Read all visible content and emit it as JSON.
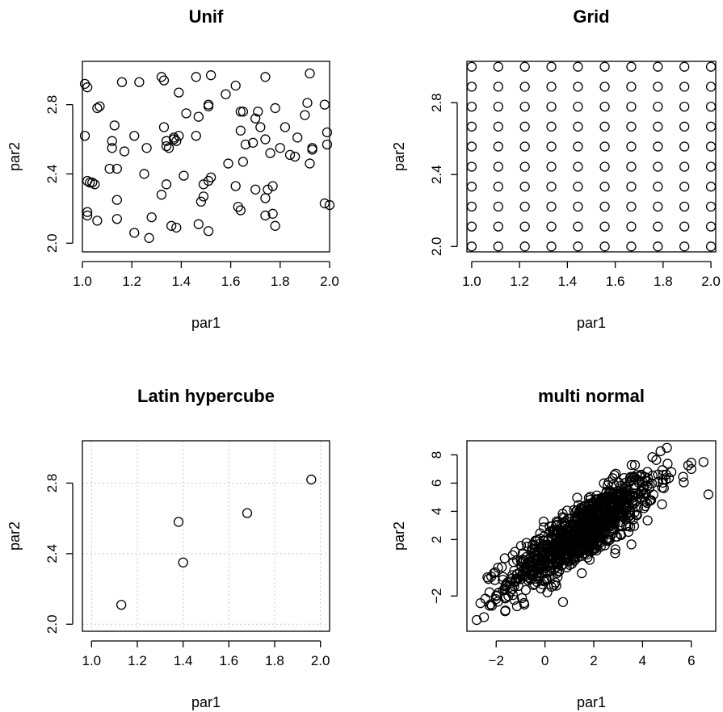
{
  "chart_data": [
    {
      "type": "scatter",
      "title": "Unif",
      "xlabel": "par1",
      "ylabel": "par2",
      "xlim": [
        1.0,
        2.0
      ],
      "ylim": [
        2.0,
        3.0
      ],
      "xticks": [
        "1.0",
        "1.2",
        "1.4",
        "1.6",
        "1.8",
        "2.0"
      ],
      "yticks": [
        "2.0",
        "2.4",
        "2.8"
      ],
      "grid": false,
      "x": [
        1.01,
        1.16,
        1.23,
        1.32,
        1.46,
        1.52,
        1.62,
        1.74,
        1.92,
        1.02,
        1.06,
        1.07,
        1.33,
        1.37,
        1.39,
        1.42,
        1.47,
        1.51,
        1.51,
        1.58,
        1.64,
        1.65,
        1.7,
        1.71,
        1.78,
        1.9,
        1.91,
        1.98,
        1.01,
        1.13,
        1.17,
        1.21,
        1.33,
        1.35,
        1.37,
        1.38,
        1.46,
        1.64,
        1.69,
        1.74,
        1.82,
        1.87,
        1.99,
        1.12,
        1.12,
        1.26,
        1.34,
        1.34,
        1.39,
        1.66,
        1.72,
        1.76,
        1.8,
        1.84,
        1.86,
        1.93,
        1.93,
        1.99,
        1.59,
        1.65,
        1.92,
        1.11,
        1.14,
        1.25,
        1.02,
        1.03,
        1.04,
        1.05,
        1.34,
        1.41,
        1.51,
        1.49,
        1.52,
        1.62,
        1.75,
        1.77,
        1.14,
        1.32,
        1.48,
        1.49,
        1.7,
        1.63,
        1.74,
        1.98,
        2.0,
        1.02,
        1.02,
        1.06,
        1.14,
        1.28,
        1.64,
        1.77,
        1.78,
        1.74,
        1.38,
        1.36,
        1.47,
        1.51,
        1.21,
        1.27
      ],
      "y": [
        2.92,
        2.93,
        2.93,
        2.96,
        2.96,
        2.97,
        2.91,
        2.96,
        2.98,
        2.9,
        2.78,
        2.79,
        2.94,
        2.61,
        2.87,
        2.75,
        2.73,
        2.8,
        2.79,
        2.86,
        2.76,
        2.76,
        2.72,
        2.76,
        2.78,
        2.74,
        2.81,
        2.8,
        2.62,
        2.68,
        2.53,
        2.62,
        2.67,
        2.55,
        2.6,
        2.59,
        2.62,
        2.65,
        2.58,
        2.6,
        2.67,
        2.61,
        2.64,
        2.59,
        2.55,
        2.55,
        2.59,
        2.56,
        2.62,
        2.57,
        2.67,
        2.52,
        2.55,
        2.51,
        2.5,
        2.55,
        2.54,
        2.57,
        2.46,
        2.47,
        2.46,
        2.43,
        2.43,
        2.4,
        2.36,
        2.35,
        2.35,
        2.34,
        2.34,
        2.39,
        2.36,
        2.34,
        2.38,
        2.33,
        2.31,
        2.33,
        2.25,
        2.28,
        2.24,
        2.27,
        2.31,
        2.21,
        2.26,
        2.23,
        2.22,
        2.18,
        2.16,
        2.13,
        2.14,
        2.15,
        2.19,
        2.17,
        2.1,
        2.16,
        2.09,
        2.1,
        2.11,
        2.07,
        2.06,
        2.03
      ]
    },
    {
      "type": "scatter",
      "title": "Grid",
      "xlabel": "par1",
      "ylabel": "par2",
      "xlim": [
        1.0,
        2.0
      ],
      "ylim": [
        2.0,
        3.0
      ],
      "xticks": [
        "1.0",
        "1.2",
        "1.4",
        "1.6",
        "1.8",
        "2.0"
      ],
      "yticks": [
        "2.0",
        "2.4",
        "2.8"
      ],
      "grid": false,
      "x_levels": [
        1.0,
        1.111,
        1.222,
        1.333,
        1.444,
        1.556,
        1.667,
        1.778,
        1.889,
        2.0
      ],
      "y_levels": [
        2.0,
        2.111,
        2.222,
        2.333,
        2.444,
        2.556,
        2.667,
        2.778,
        2.889,
        3.0
      ]
    },
    {
      "type": "scatter",
      "title": "Latin hypercube",
      "xlabel": "par1",
      "ylabel": "par2",
      "xlim": [
        1.0,
        2.0
      ],
      "ylim": [
        2.0,
        3.0
      ],
      "xticks": [
        "1.0",
        "1.2",
        "1.4",
        "1.6",
        "1.8",
        "2.0"
      ],
      "yticks": [
        "2.0",
        "2.4",
        "2.8"
      ],
      "grid": true,
      "x": [
        1.13,
        1.38,
        1.4,
        1.68,
        1.96
      ],
      "y": [
        2.11,
        2.58,
        2.35,
        2.63,
        2.82
      ]
    },
    {
      "type": "scatter",
      "title": "multi normal",
      "xlabel": "par1",
      "ylabel": "par2",
      "xlim": [
        -3.0,
        7.0
      ],
      "ylim": [
        -4.0,
        9.0
      ],
      "xticks": [
        "−2",
        "0",
        "2",
        "4",
        "6"
      ],
      "yticks": [
        "−2",
        "2",
        "4",
        "6",
        "8"
      ],
      "grid": false,
      "point_count_estimate": 1000,
      "mean": [
        1.5,
        2.5
      ],
      "sd": [
        1.5,
        2.0
      ],
      "correlation": 0.85,
      "highlighted_points": {
        "x": [
          -2.8,
          -2.5,
          -2.0,
          -1.5,
          6.7,
          6.5,
          5.0,
          4.8,
          6.0
        ],
        "y": [
          -3.7,
          -3.5,
          -2.0,
          -2.0,
          5.2,
          7.5,
          8.5,
          4.5,
          7.0
        ]
      }
    }
  ]
}
